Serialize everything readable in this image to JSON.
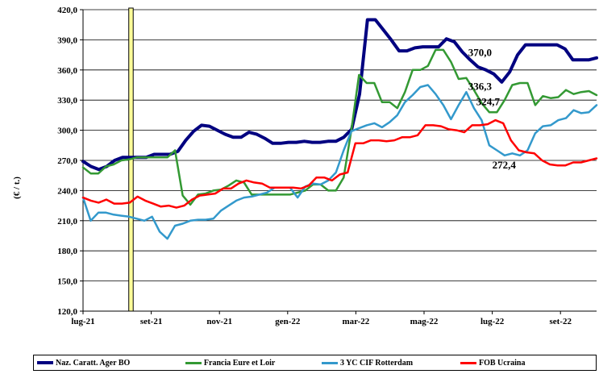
{
  "chart_data": {
    "type": "line",
    "title": "",
    "xlabel": "",
    "ylabel": "(€ / t.)",
    "ylim": [
      120,
      420
    ],
    "yticks": [
      "120,0",
      "150,0",
      "180,0",
      "210,0",
      "240,0",
      "270,0",
      "300,0",
      "330,0",
      "360,0",
      "390,0",
      "420,0"
    ],
    "x_range": [
      0,
      64
    ],
    "xticks": [
      {
        "x": 0,
        "label": "lug-21"
      },
      {
        "x": 8.5,
        "label": "set-21"
      },
      {
        "x": 17,
        "label": "nov-21"
      },
      {
        "x": 25.5,
        "label": "gen-22"
      },
      {
        "x": 34,
        "label": "mar-22"
      },
      {
        "x": 42.5,
        "label": "mag-22"
      },
      {
        "x": 51,
        "label": "lug-22"
      },
      {
        "x": 59.5,
        "label": "set-22"
      }
    ],
    "highlight_band": {
      "x": 5.7,
      "width": 0.55,
      "color": "#ffff99"
    },
    "grid": "horizontal",
    "legend_position": "bottom",
    "series": [
      {
        "name": "Naz. Caratt. Ager BO",
        "color": "#000080",
        "width": 4,
        "values": [
          269,
          264,
          261,
          264,
          270,
          273,
          273,
          273,
          273,
          276,
          276,
          276,
          279,
          290,
          299,
          305,
          304,
          300,
          296,
          293,
          293,
          298,
          296,
          292,
          287,
          287,
          288,
          288,
          289,
          288,
          288,
          289,
          289,
          293,
          301,
          336,
          410,
          410,
          400,
          390,
          379,
          379,
          382,
          383,
          383,
          383,
          391,
          388,
          378,
          370,
          363,
          360,
          356,
          348,
          358,
          375,
          385,
          385,
          385,
          385,
          385,
          381,
          370,
          370,
          370,
          372
        ],
        "end_label": "370,0"
      },
      {
        "name": "Francia Eure et Loir",
        "color": "#339933",
        "width": 2.5,
        "values": [
          263,
          257,
          257,
          264,
          266,
          270,
          271,
          273,
          273,
          273,
          273,
          273,
          280,
          235,
          226,
          236,
          237,
          240,
          241,
          245,
          250,
          248,
          236,
          236,
          236,
          236,
          236,
          236,
          238,
          240,
          246,
          246,
          240,
          240,
          253,
          300,
          355,
          347,
          347,
          328,
          328,
          322,
          338,
          360,
          360,
          364,
          380,
          380,
          368,
          351,
          352,
          340,
          327,
          318,
          318,
          330,
          345,
          347,
          347,
          325,
          334,
          332,
          333,
          340,
          336,
          338,
          339,
          335
        ],
        "end_label": "336,3"
      },
      {
        "name": "3 YC CIF Rotterdam",
        "color": "#3399cc",
        "width": 2.5,
        "values": [
          233,
          210,
          218,
          218,
          216,
          215,
          214,
          212,
          210,
          214,
          199,
          192,
          205,
          207,
          210,
          211,
          211,
          212,
          220,
          225,
          230,
          233,
          234,
          236,
          238,
          243,
          243,
          243,
          233,
          244,
          247,
          246,
          250,
          258,
          280,
          299,
          302,
          305,
          307,
          303,
          308,
          315,
          328,
          335,
          343,
          345,
          336,
          325,
          311,
          325,
          338,
          322,
          310,
          285,
          280,
          275,
          277,
          275,
          280,
          297,
          304,
          305,
          310,
          312,
          320,
          317,
          318,
          325
        ],
        "end_label": "324,7"
      },
      {
        "name": "FOB Ucraina",
        "color": "#ff0000",
        "width": 2.5,
        "values": [
          233,
          230,
          228,
          231,
          227,
          227,
          228,
          234,
          230,
          227,
          224,
          225,
          223,
          225,
          231,
          235,
          236,
          237,
          242,
          242,
          247,
          250,
          248,
          247,
          243,
          243,
          243,
          243,
          242,
          245,
          253,
          253,
          250,
          256,
          258,
          287,
          287,
          290,
          290,
          289,
          290,
          293,
          293,
          295,
          305,
          305,
          304,
          301,
          300,
          298,
          305,
          305,
          306,
          310,
          307,
          290,
          280,
          278,
          277,
          270,
          266,
          265,
          265,
          268,
          268,
          270,
          272
        ]
      }
    ],
    "annotations": [
      {
        "text": "370,0",
        "x": 48,
        "y": 374,
        "series": 0
      },
      {
        "text": "336,3",
        "x": 48,
        "y": 340,
        "series": 1
      },
      {
        "text": "324,7",
        "x": 49,
        "y": 325,
        "series": 2
      },
      {
        "text": "272,4",
        "x": 51,
        "y": 262,
        "series": 3
      }
    ]
  }
}
